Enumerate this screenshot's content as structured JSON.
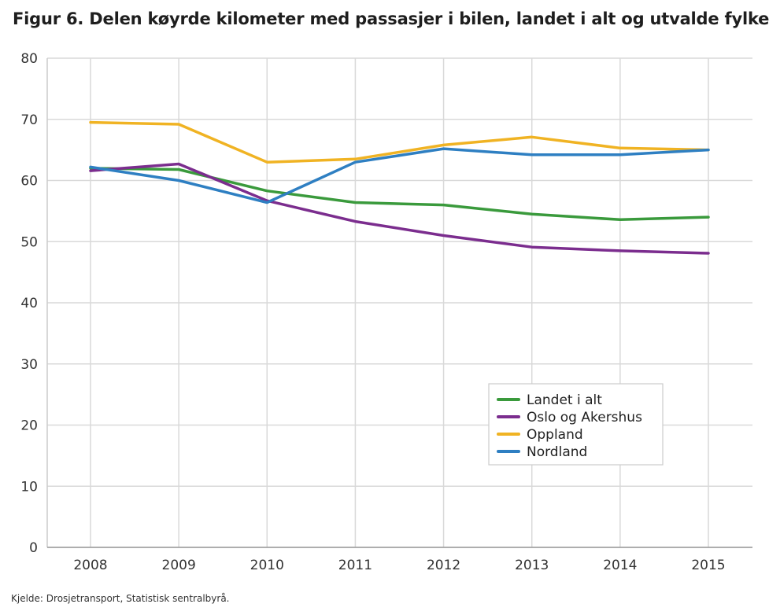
{
  "title": "Figur 6. Delen køyrde kilometer med passasjer i bilen, landet i alt og utvalde fylke",
  "source": "Kjelde: Drosjetransport, Statistisk sentralbyrå.",
  "chart_data": {
    "type": "line",
    "title": "Figur 6. Delen køyrde kilometer med passasjer i bilen, landet i alt og utvalde fylke",
    "xlabel": "",
    "ylabel": "",
    "x": [
      "2008",
      "2009",
      "2010",
      "2011",
      "2012",
      "2013",
      "2014",
      "2015"
    ],
    "ylim": [
      0,
      80
    ],
    "yticks": [
      0,
      10,
      20,
      30,
      40,
      50,
      60,
      70,
      80
    ],
    "grid": "vertical",
    "legend_position": "lower-right",
    "series": [
      {
        "name": "Landet i alt",
        "color": "#3a9a3c",
        "values": [
          62.0,
          61.8,
          58.3,
          56.4,
          56.0,
          54.5,
          53.6,
          54.0
        ]
      },
      {
        "name": "Oslo og Akershus",
        "color": "#7b2d8e",
        "values": [
          61.6,
          62.7,
          56.7,
          53.3,
          51.0,
          49.1,
          48.5,
          48.1
        ]
      },
      {
        "name": "Oppland",
        "color": "#f0b323",
        "values": [
          69.5,
          69.2,
          63.0,
          63.5,
          65.8,
          67.1,
          65.3,
          65.0
        ]
      },
      {
        "name": "Nordland",
        "color": "#2e7fc2",
        "values": [
          62.2,
          60.0,
          56.4,
          63.0,
          65.2,
          64.2,
          64.2,
          65.0
        ]
      }
    ]
  }
}
